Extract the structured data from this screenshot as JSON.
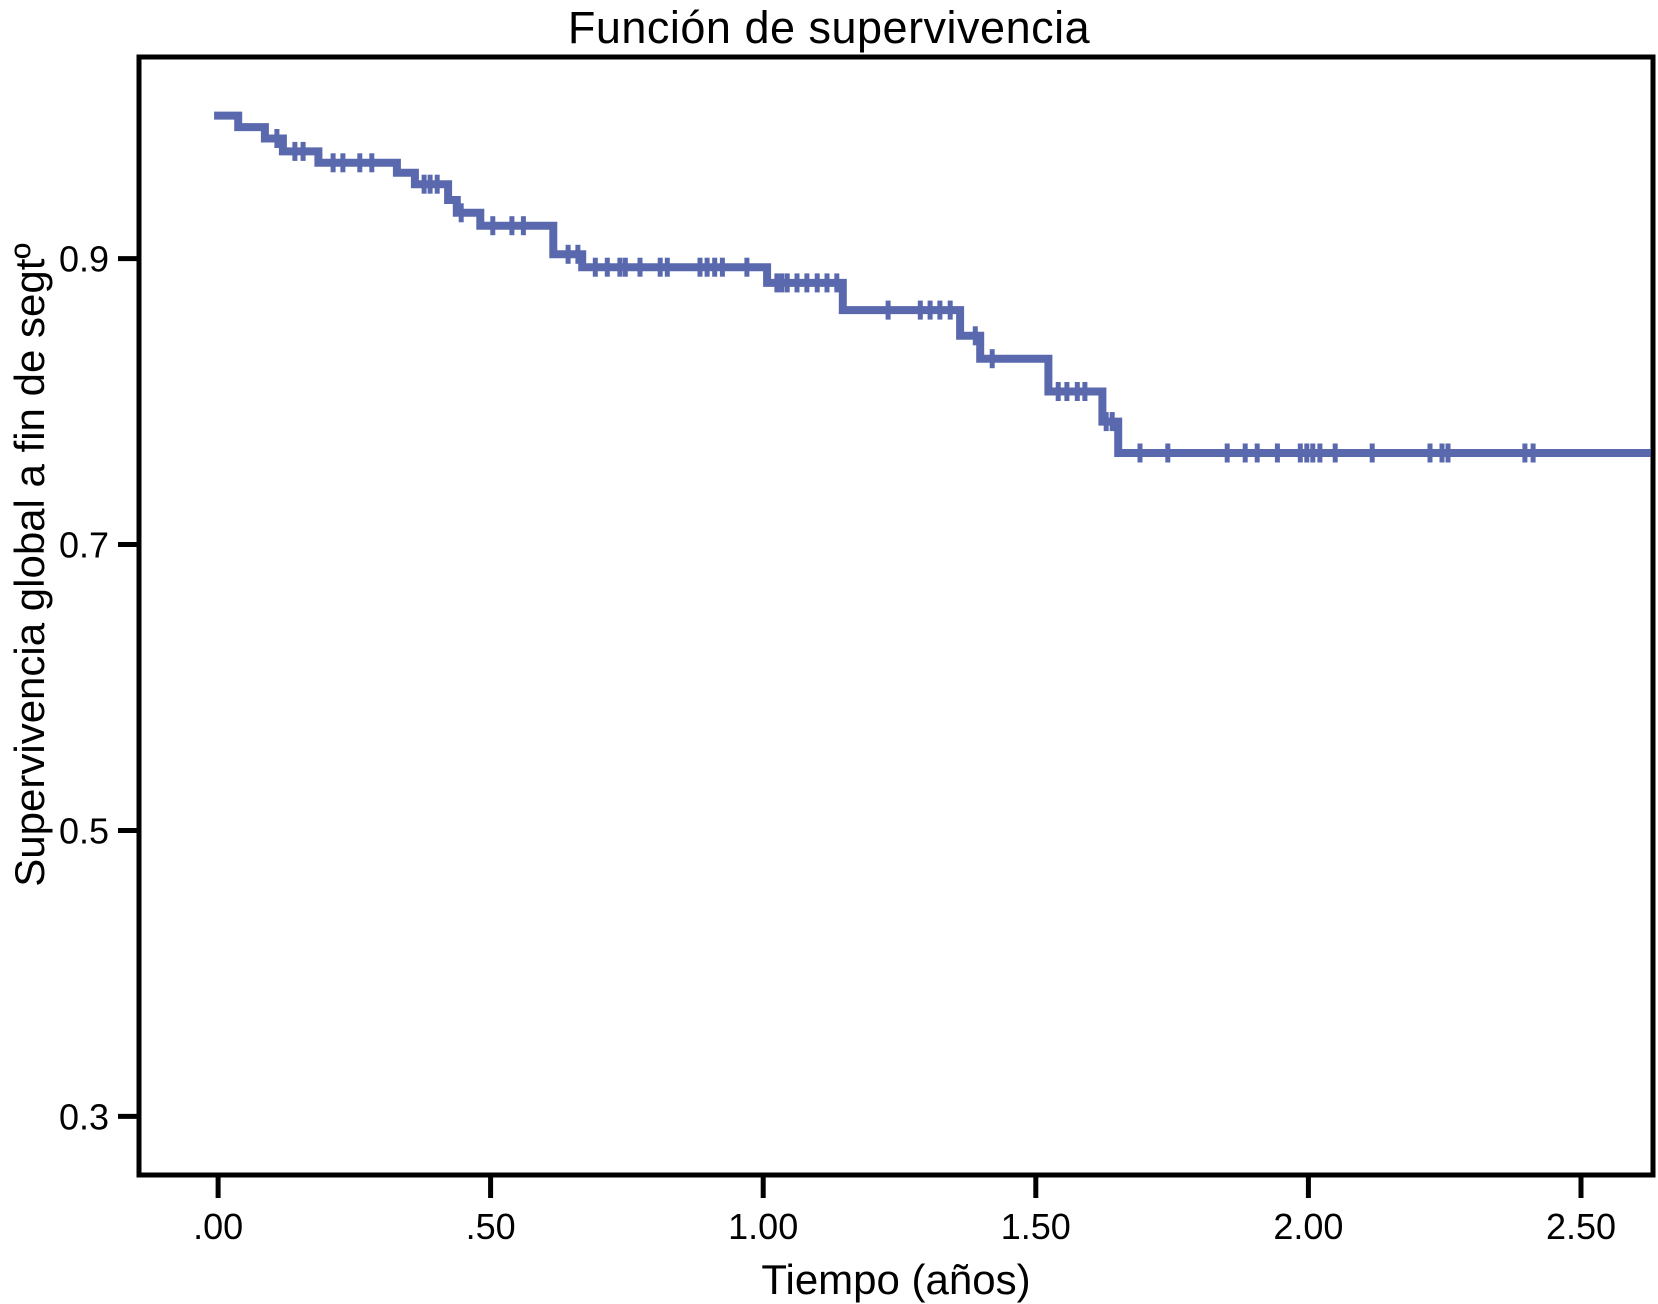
{
  "title": "Función de supervivencia",
  "chart_data": {
    "type": "line",
    "subtype": "kaplan-meier-step-function",
    "title": "Función de supervivencia",
    "xlabel": "Tiempo (años)",
    "ylabel": "Supervivencia global a fin de segtº",
    "grid": false,
    "legend": "none",
    "line_color": "#5A68AE",
    "axis_color": "#000000",
    "background_color": "#FFFFFF",
    "xlim": [
      -0.145,
      2.632
    ],
    "ylim": [
      0.259,
      1.041
    ],
    "x_ticks": [
      {
        "value": 0.0,
        "label": ".00"
      },
      {
        "value": 0.5,
        "label": ".50"
      },
      {
        "value": 1.0,
        "label": "1.00"
      },
      {
        "value": 1.5,
        "label": "1.50"
      },
      {
        "value": 2.0,
        "label": "2.00"
      },
      {
        "value": 2.5,
        "label": "2.50"
      }
    ],
    "y_ticks": [
      {
        "value": 0.9,
        "label": "0.9"
      },
      {
        "value": 0.7,
        "label": "0.7"
      },
      {
        "value": 0.5,
        "label": "0.5"
      },
      {
        "value": 0.3,
        "label": "0.3"
      }
    ],
    "series": [
      {
        "name": "Supervivencia global",
        "steps": [
          [
            0.0,
            1.0
          ],
          [
            0.037,
            0.992
          ],
          [
            0.086,
            0.984
          ],
          [
            0.119,
            0.975
          ],
          [
            0.184,
            0.967
          ],
          [
            0.328,
            0.96
          ],
          [
            0.361,
            0.952
          ],
          [
            0.422,
            0.941
          ],
          [
            0.438,
            0.932
          ],
          [
            0.481,
            0.923
          ],
          [
            0.615,
            0.903
          ],
          [
            0.668,
            0.894
          ],
          [
            1.007,
            0.883
          ],
          [
            1.146,
            0.864
          ],
          [
            1.361,
            0.846
          ],
          [
            1.398,
            0.83
          ],
          [
            1.523,
            0.807
          ],
          [
            1.622,
            0.786
          ],
          [
            1.651,
            0.764
          ]
        ],
        "end_t": 2.628
      }
    ],
    "censor_marks": [
      [
        0.108,
        0.984
      ],
      [
        0.141,
        0.975
      ],
      [
        0.156,
        0.975
      ],
      [
        0.211,
        0.967
      ],
      [
        0.229,
        0.967
      ],
      [
        0.26,
        0.967
      ],
      [
        0.282,
        0.967
      ],
      [
        0.378,
        0.952
      ],
      [
        0.389,
        0.952
      ],
      [
        0.402,
        0.952
      ],
      [
        0.446,
        0.932
      ],
      [
        0.504,
        0.923
      ],
      [
        0.539,
        0.923
      ],
      [
        0.56,
        0.923
      ],
      [
        0.642,
        0.903
      ],
      [
        0.66,
        0.903
      ],
      [
        0.692,
        0.894
      ],
      [
        0.714,
        0.894
      ],
      [
        0.737,
        0.894
      ],
      [
        0.747,
        0.894
      ],
      [
        0.774,
        0.894
      ],
      [
        0.811,
        0.894
      ],
      [
        0.824,
        0.894
      ],
      [
        0.884,
        0.894
      ],
      [
        0.897,
        0.894
      ],
      [
        0.911,
        0.894
      ],
      [
        0.925,
        0.894
      ],
      [
        0.97,
        0.894
      ],
      [
        1.025,
        0.883
      ],
      [
        1.034,
        0.883
      ],
      [
        1.044,
        0.883
      ],
      [
        1.062,
        0.883
      ],
      [
        1.08,
        0.883
      ],
      [
        1.099,
        0.883
      ],
      [
        1.117,
        0.883
      ],
      [
        1.135,
        0.883
      ],
      [
        1.229,
        0.864
      ],
      [
        1.288,
        0.864
      ],
      [
        1.306,
        0.864
      ],
      [
        1.324,
        0.864
      ],
      [
        1.343,
        0.864
      ],
      [
        1.389,
        0.846
      ],
      [
        1.42,
        0.83
      ],
      [
        1.541,
        0.807
      ],
      [
        1.557,
        0.807
      ],
      [
        1.576,
        0.807
      ],
      [
        1.59,
        0.807
      ],
      [
        1.629,
        0.786
      ],
      [
        1.64,
        0.786
      ],
      [
        1.691,
        0.764
      ],
      [
        1.742,
        0.764
      ],
      [
        1.851,
        0.764
      ],
      [
        1.884,
        0.764
      ],
      [
        1.906,
        0.764
      ],
      [
        1.943,
        0.764
      ],
      [
        1.985,
        0.764
      ],
      [
        1.997,
        0.764
      ],
      [
        2.008,
        0.764
      ],
      [
        2.021,
        0.764
      ],
      [
        2.049,
        0.764
      ],
      [
        2.117,
        0.764
      ],
      [
        2.223,
        0.764
      ],
      [
        2.245,
        0.764
      ],
      [
        2.256,
        0.764
      ],
      [
        2.397,
        0.764
      ],
      [
        2.412,
        0.764
      ]
    ]
  }
}
